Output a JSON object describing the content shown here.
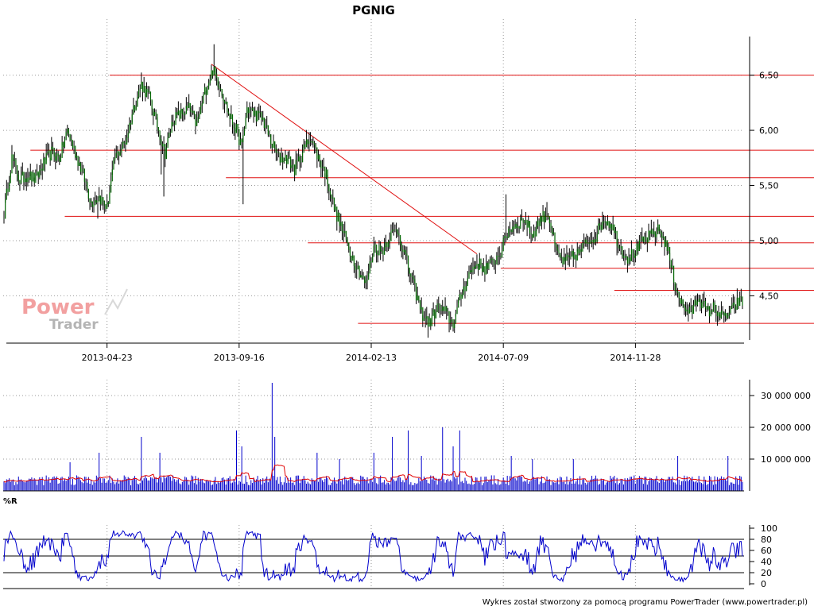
{
  "chart_data": [
    {
      "type": "ohlc",
      "title": "PGNIG",
      "x_tick_labels": [
        "2013-04-23",
        "2013-09-16",
        "2014-02-13",
        "2014-07-09",
        "2014-11-28"
      ],
      "y_tick_labels": [
        "4,50",
        "5,00",
        "5,50",
        "6,00",
        "6,50"
      ],
      "ylim": [
        4.1,
        6.85
      ],
      "grid": true,
      "bar_color": "#006400",
      "wick_color": "#000000",
      "key_points": [
        {
          "i": 0,
          "v": 5.25
        },
        {
          "i": 6,
          "v": 5.75
        },
        {
          "i": 12,
          "v": 5.55
        },
        {
          "i": 18,
          "v": 5.6
        },
        {
          "i": 24,
          "v": 5.55
        },
        {
          "i": 30,
          "v": 5.7
        },
        {
          "i": 36,
          "v": 5.8
        },
        {
          "i": 42,
          "v": 5.75
        },
        {
          "i": 48,
          "v": 6.0
        },
        {
          "i": 54,
          "v": 5.8
        },
        {
          "i": 60,
          "v": 5.6
        },
        {
          "i": 66,
          "v": 5.35
        },
        {
          "i": 72,
          "v": 5.4
        },
        {
          "i": 78,
          "v": 5.3
        },
        {
          "i": 84,
          "v": 5.75
        },
        {
          "i": 92,
          "v": 5.9
        },
        {
          "i": 98,
          "v": 6.2
        },
        {
          "i": 104,
          "v": 6.42
        },
        {
          "i": 110,
          "v": 6.3
        },
        {
          "i": 116,
          "v": 6.05
        },
        {
          "i": 122,
          "v": 5.8
        },
        {
          "i": 128,
          "v": 6.1
        },
        {
          "i": 134,
          "v": 6.15
        },
        {
          "i": 140,
          "v": 6.2
        },
        {
          "i": 146,
          "v": 6.05
        },
        {
          "i": 152,
          "v": 6.35
        },
        {
          "i": 158,
          "v": 6.55
        },
        {
          "i": 164,
          "v": 6.4
        },
        {
          "i": 170,
          "v": 6.15
        },
        {
          "i": 176,
          "v": 6.0
        },
        {
          "i": 180,
          "v": 5.85
        },
        {
          "i": 184,
          "v": 6.2
        },
        {
          "i": 190,
          "v": 6.15
        },
        {
          "i": 196,
          "v": 6.1
        },
        {
          "i": 202,
          "v": 5.9
        },
        {
          "i": 208,
          "v": 5.75
        },
        {
          "i": 214,
          "v": 5.75
        },
        {
          "i": 220,
          "v": 5.65
        },
        {
          "i": 226,
          "v": 5.8
        },
        {
          "i": 232,
          "v": 5.95
        },
        {
          "i": 238,
          "v": 5.75
        },
        {
          "i": 244,
          "v": 5.6
        },
        {
          "i": 250,
          "v": 5.3
        },
        {
          "i": 256,
          "v": 5.1
        },
        {
          "i": 262,
          "v": 4.9
        },
        {
          "i": 268,
          "v": 4.75
        },
        {
          "i": 274,
          "v": 4.6
        },
        {
          "i": 280,
          "v": 4.95
        },
        {
          "i": 286,
          "v": 4.9
        },
        {
          "i": 292,
          "v": 5.05
        },
        {
          "i": 298,
          "v": 5.1
        },
        {
          "i": 304,
          "v": 4.85
        },
        {
          "i": 310,
          "v": 4.6
        },
        {
          "i": 316,
          "v": 4.35
        },
        {
          "i": 322,
          "v": 4.25
        },
        {
          "i": 328,
          "v": 4.4
        },
        {
          "i": 334,
          "v": 4.35
        },
        {
          "i": 340,
          "v": 4.25
        },
        {
          "i": 346,
          "v": 4.5
        },
        {
          "i": 352,
          "v": 4.7
        },
        {
          "i": 358,
          "v": 4.8
        },
        {
          "i": 364,
          "v": 4.75
        },
        {
          "i": 370,
          "v": 4.8
        },
        {
          "i": 376,
          "v": 4.9
        },
        {
          "i": 382,
          "v": 5.1
        },
        {
          "i": 388,
          "v": 5.15
        },
        {
          "i": 394,
          "v": 5.2
        },
        {
          "i": 400,
          "v": 5.05
        },
        {
          "i": 406,
          "v": 5.2
        },
        {
          "i": 412,
          "v": 5.25
        },
        {
          "i": 418,
          "v": 4.9
        },
        {
          "i": 424,
          "v": 4.8
        },
        {
          "i": 430,
          "v": 4.85
        },
        {
          "i": 436,
          "v": 4.9
        },
        {
          "i": 442,
          "v": 5.0
        },
        {
          "i": 448,
          "v": 5.05
        },
        {
          "i": 454,
          "v": 5.2
        },
        {
          "i": 460,
          "v": 5.15
        },
        {
          "i": 466,
          "v": 4.95
        },
        {
          "i": 472,
          "v": 4.85
        },
        {
          "i": 478,
          "v": 4.9
        },
        {
          "i": 484,
          "v": 5.0
        },
        {
          "i": 490,
          "v": 5.05
        },
        {
          "i": 496,
          "v": 5.1
        },
        {
          "i": 502,
          "v": 4.95
        },
        {
          "i": 508,
          "v": 4.6
        },
        {
          "i": 514,
          "v": 4.4
        },
        {
          "i": 520,
          "v": 4.35
        },
        {
          "i": 526,
          "v": 4.5
        },
        {
          "i": 532,
          "v": 4.35
        },
        {
          "i": 538,
          "v": 4.4
        },
        {
          "i": 544,
          "v": 4.3
        },
        {
          "i": 550,
          "v": 4.35
        },
        {
          "i": 556,
          "v": 4.45
        }
      ],
      "wick_spikes": [
        {
          "i": 71,
          "low": 5.2
        },
        {
          "i": 119,
          "low": 5.6
        },
        {
          "i": 121,
          "low": 5.4
        },
        {
          "i": 159,
          "high": 6.78
        },
        {
          "i": 181,
          "low": 5.33
        },
        {
          "i": 321,
          "low": 4.12
        },
        {
          "i": 380,
          "high": 5.42
        },
        {
          "i": 411,
          "high": 5.35
        }
      ],
      "support_resistance_lines": [
        6.5,
        5.82,
        5.57,
        5.22,
        4.98,
        4.75,
        4.55,
        4.25
      ],
      "trendline": {
        "start": {
          "i": 157,
          "v": 6.6
        },
        "end": {
          "i": 358,
          "v": 4.88
        }
      }
    },
    {
      "type": "bar",
      "name": "volume",
      "y_tick_labels": [
        "10 000 000",
        "20 000 000",
        "30 000 000"
      ],
      "ylim": [
        0,
        35000000
      ],
      "bar_color": "#0000cc",
      "ma_color": "#e00000",
      "typical_volume": 3500000,
      "spikes": [
        {
          "i": 50,
          "v": 9000000
        },
        {
          "i": 72,
          "v": 12000000
        },
        {
          "i": 104,
          "v": 17000000
        },
        {
          "i": 118,
          "v": 12000000
        },
        {
          "i": 176,
          "v": 19000000
        },
        {
          "i": 180,
          "v": 14000000
        },
        {
          "i": 203,
          "v": 34000000
        },
        {
          "i": 205,
          "v": 17000000
        },
        {
          "i": 237,
          "v": 12000000
        },
        {
          "i": 254,
          "v": 10000000
        },
        {
          "i": 280,
          "v": 12000000
        },
        {
          "i": 294,
          "v": 17000000
        },
        {
          "i": 306,
          "v": 19000000
        },
        {
          "i": 316,
          "v": 11000000
        },
        {
          "i": 332,
          "v": 20000000
        },
        {
          "i": 340,
          "v": 14000000
        },
        {
          "i": 345,
          "v": 19000000
        },
        {
          "i": 384,
          "v": 11000000
        },
        {
          "i": 400,
          "v": 10000000
        },
        {
          "i": 431,
          "v": 10000000
        },
        {
          "i": 510,
          "v": 11000000
        },
        {
          "i": 548,
          "v": 11000000
        }
      ]
    },
    {
      "type": "line",
      "name": "%R",
      "label": "%R",
      "y_tick_labels": [
        "0",
        "20",
        "40",
        "60",
        "80",
        "100"
      ],
      "ylim": [
        0,
        100
      ],
      "reference_lines": [
        20,
        50,
        80
      ],
      "line_color": "#0000cc"
    }
  ],
  "branding": {
    "logo_word_1": "Power",
    "logo_word_2": "Trader"
  },
  "footer": {
    "text": "Wykres został stworzony za pomocą programu PowerTrader (www.powertrader.pl)"
  }
}
